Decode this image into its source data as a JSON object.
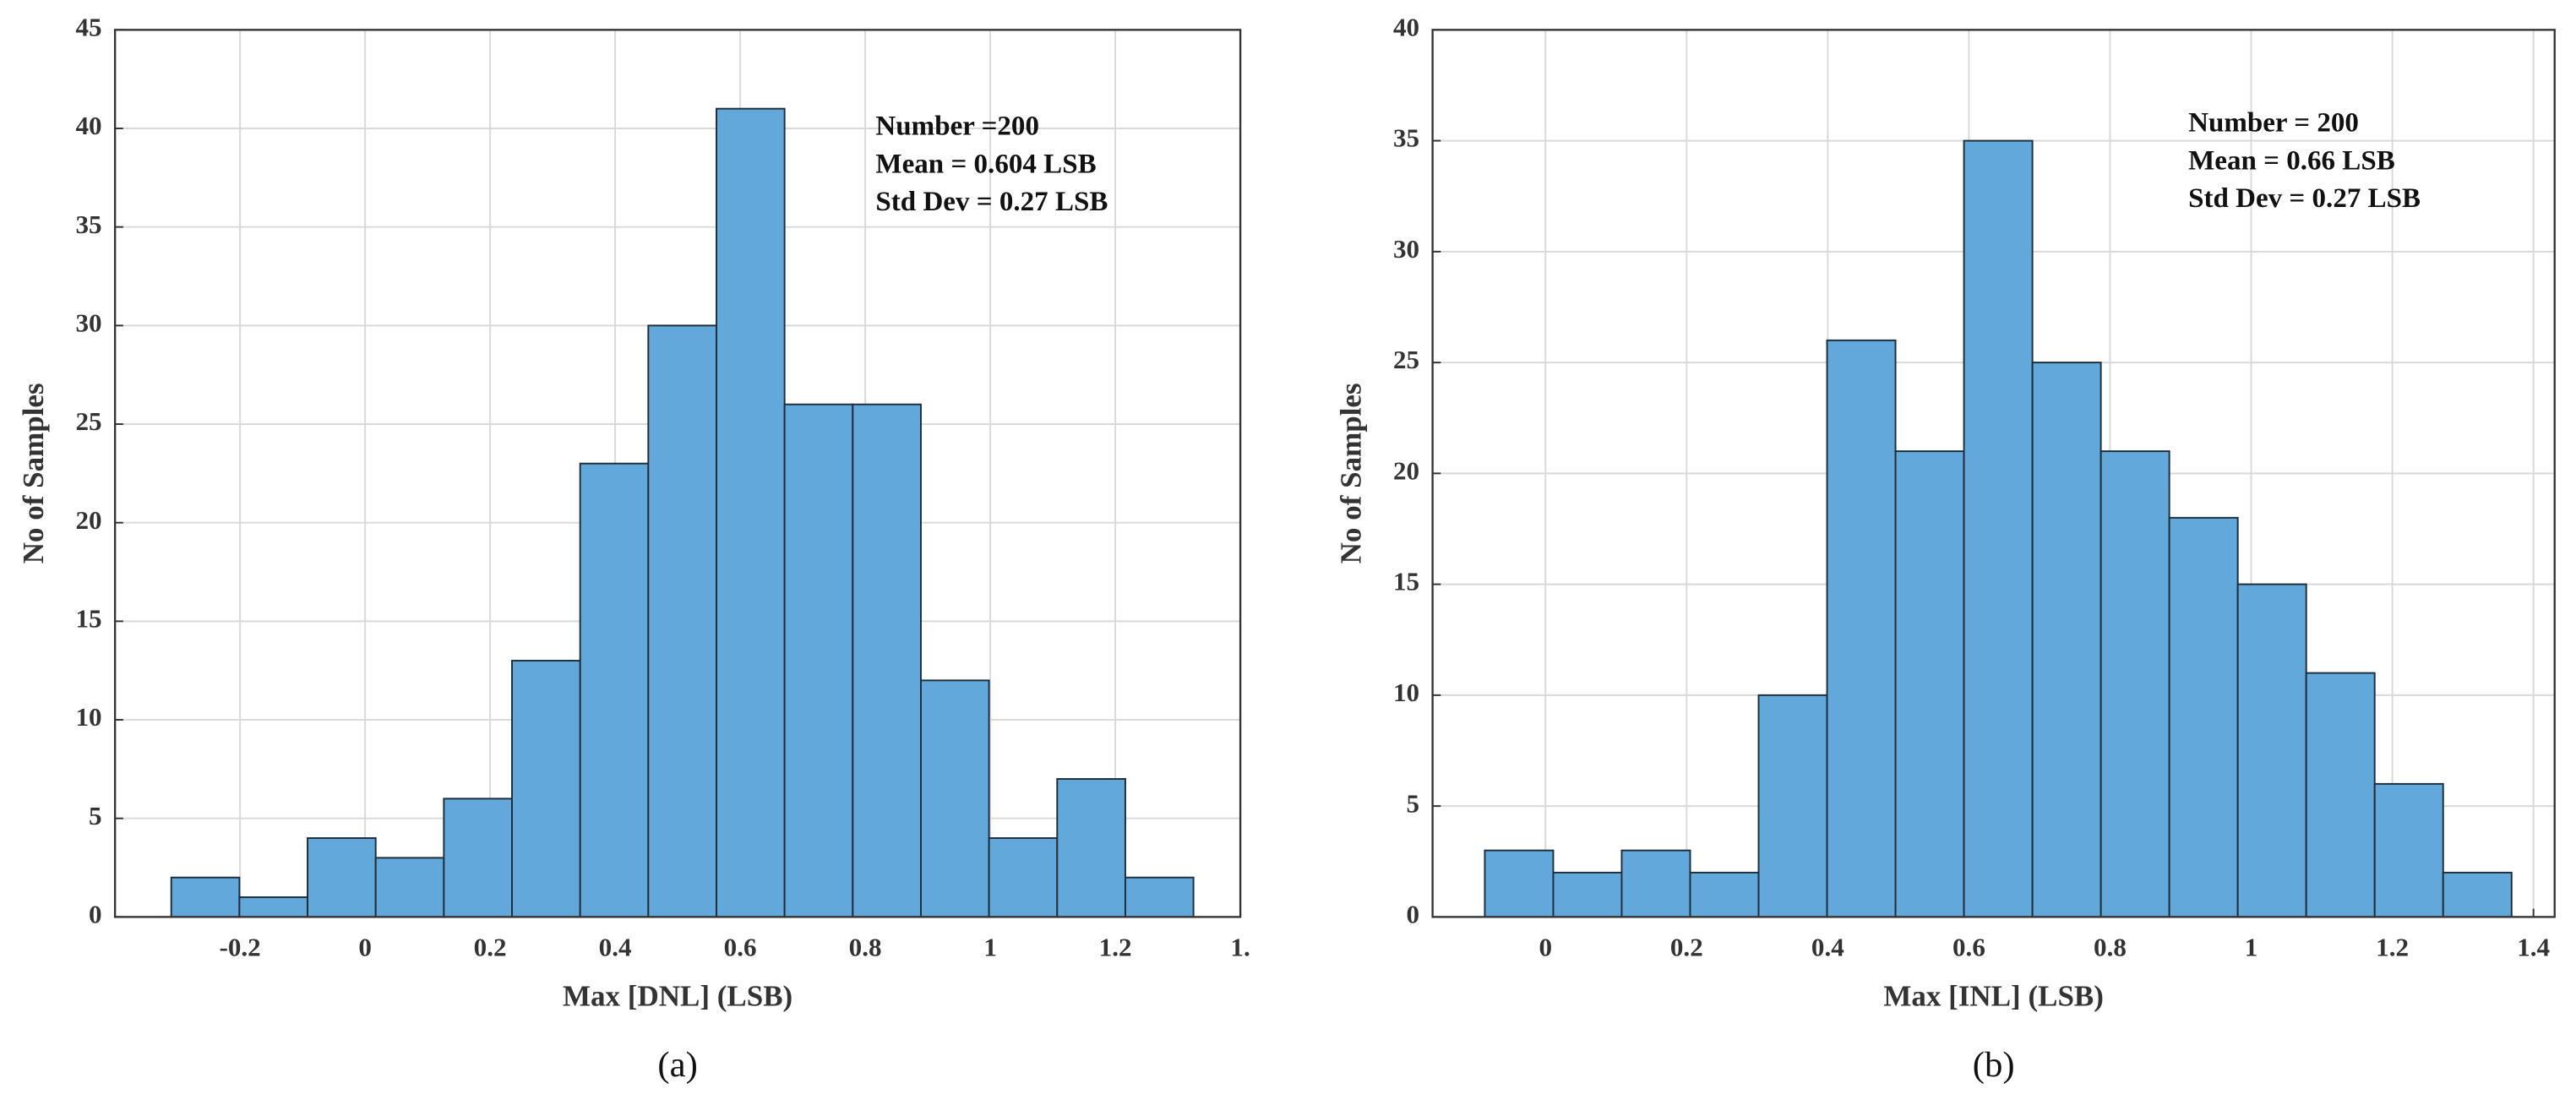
{
  "chart_data": [
    {
      "type": "histogram",
      "xlabel": "Max [DNL]  (LSB)",
      "ylabel": "No of Samples",
      "caption": "(a)",
      "annotations": [
        "Number =200",
        "Mean = 0.604 LSB",
        "Std Dev = 0.27 LSB"
      ],
      "bins": [
        -0.31,
        -0.201,
        -0.092,
        0.017,
        0.126,
        0.235,
        0.344,
        0.453,
        0.562,
        0.671,
        0.78,
        0.889,
        0.998,
        1.107,
        1.216,
        1.325
      ],
      "values": [
        2,
        1,
        4,
        3,
        6,
        13,
        23,
        30,
        41,
        26,
        26,
        12,
        4,
        7,
        2
      ],
      "color": "#62a8da",
      "edgecolor": "#1f2d3a",
      "xlim": [
        -0.4,
        1.4
      ],
      "xticks": [
        -0.2,
        0,
        0.2,
        0.4,
        0.6,
        0.8,
        1,
        1.2,
        {
          "value": 1.4,
          "label": "1."
        }
      ],
      "ylim": [
        0,
        45
      ],
      "yticks": [
        0,
        5,
        10,
        15,
        20,
        25,
        30,
        35,
        40,
        45
      ],
      "grid": true
    },
    {
      "type": "histogram",
      "xlabel": "Max [INL] (LSB)",
      "ylabel": "No of Samples",
      "caption": "(b)",
      "annotations": [
        "Number = 200",
        "Mean = 0.66 LSB",
        "Std Dev = 0.27 LSB"
      ],
      "bins": [
        -0.086,
        0.011,
        0.108,
        0.205,
        0.302,
        0.399,
        0.496,
        0.593,
        0.69,
        0.787,
        0.884,
        0.981,
        1.078,
        1.175,
        1.272,
        1.369
      ],
      "values": [
        3,
        2,
        3,
        2,
        10,
        26,
        21,
        35,
        25,
        21,
        18,
        15,
        11,
        6,
        2
      ],
      "color": "#62a8da",
      "edgecolor": "#1f2d3a",
      "xlim": [
        -0.16,
        1.43
      ],
      "xticks": [
        0,
        0.2,
        0.4,
        0.6,
        0.8,
        1,
        1.2,
        1.4
      ],
      "ylim": [
        0,
        40
      ],
      "yticks": [
        0,
        5,
        10,
        15,
        20,
        25,
        30,
        35,
        40
      ],
      "grid": true
    }
  ]
}
